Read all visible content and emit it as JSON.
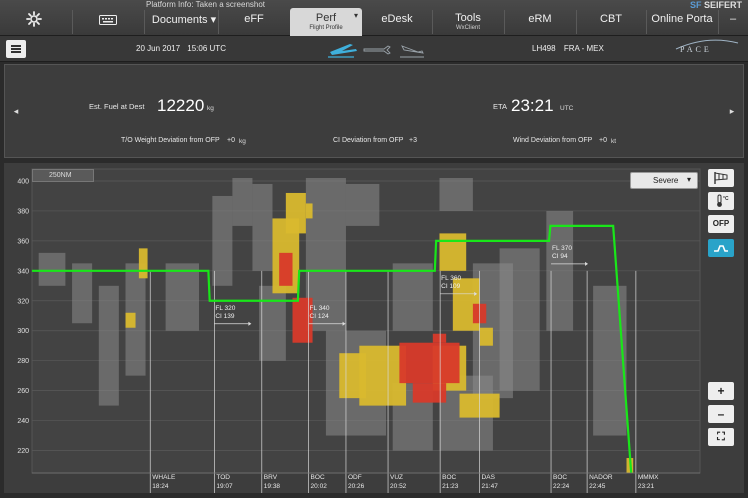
{
  "topnav": {
    "platform_info": "Platform Info: Taken a screenshot",
    "brand_sf": "SF",
    "brand_name": "SEIFERT",
    "tabs": [
      {
        "label": "Documents ▾"
      },
      {
        "label": "eFF"
      },
      {
        "label": "Perf",
        "sub": "Flight Profile"
      },
      {
        "label": "eDesk"
      },
      {
        "label": "Tools",
        "sub": "WxClient"
      },
      {
        "label": "eRM"
      },
      {
        "label": "CBT"
      },
      {
        "label": "Online Porta"
      }
    ],
    "perf_caret": "▾",
    "minimize": "–"
  },
  "header": {
    "date": "20 Jun 2017",
    "time": "15:06 UTC",
    "flight": "LH498",
    "route": "FRA - MEX",
    "logo": "PACE"
  },
  "summary": {
    "left_arrow": "◂",
    "right_arrow": "▸",
    "fuel_label": "Est. Fuel at Dest",
    "fuel_value": "12220",
    "fuel_unit": "kg",
    "eta_label": "ETA",
    "eta_value": "23:21",
    "eta_unit": "UTC",
    "tow_label": "T/O Weight Deviation from OFP",
    "tow_value": "+0",
    "tow_unit": "kg",
    "ci_label": "CI Deviation from OFP",
    "ci_value": "+3",
    "wind_label": "Wind Deviation from OFP",
    "wind_value": "+0",
    "wind_unit": "kt"
  },
  "chart_controls": {
    "range_label": "250NM",
    "severity": "Severe",
    "severity_caret": "▾",
    "buttons": [
      "OFP",
      "+",
      "–",
      "⛶"
    ]
  },
  "colors": {
    "profile": "#19e619",
    "turb_light": "#8a8a8a",
    "turb_moderate": "#d9b92e",
    "turb_severe": "#d83a2a",
    "accent": "#29a3c9"
  },
  "chart_data": {
    "type": "line",
    "y_label": "",
    "ylim": [
      205,
      408
    ],
    "y_ticks": [
      220,
      240,
      260,
      280,
      300,
      320,
      340,
      360,
      380,
      400
    ],
    "xlim": [
      0,
      100
    ],
    "grid": true,
    "profile": {
      "x": [
        0,
        26.4,
        26.6,
        39.8,
        40.0,
        60.3,
        60.5,
        77.4,
        77.6,
        87.0,
        89.7
      ],
      "y": [
        340,
        340,
        320,
        320,
        340,
        340,
        360,
        360,
        370,
        370,
        205
      ]
    },
    "waypoints": [
      {
        "name": "WHALE",
        "time": "18:24",
        "x": 17.7
      },
      {
        "name": "TOD",
        "time": "19:07",
        "x": 27.3
      },
      {
        "name": "BRV",
        "time": "19:38",
        "x": 34.4
      },
      {
        "name": "BOC",
        "time": "20:02",
        "x": 41.4
      },
      {
        "name": "ODF",
        "time": "20:26",
        "x": 47.0
      },
      {
        "name": "VUZ",
        "time": "20:52",
        "x": 53.3
      },
      {
        "name": "BOC",
        "time": "21:23",
        "x": 61.1
      },
      {
        "name": "DAS",
        "time": "21:47",
        "x": 67.0
      },
      {
        "name": "BOC",
        "time": "22:24",
        "x": 77.7
      },
      {
        "name": "NADOR",
        "time": "22:45",
        "x": 83.1
      },
      {
        "name": "MMMX",
        "time": "23:21",
        "x": 90.4
      }
    ],
    "step_annotations": [
      {
        "fl": "FL 320",
        "ci": "CI 139",
        "x": 27.3,
        "y": 318
      },
      {
        "fl": "FL 340",
        "ci": "CI 124",
        "x": 41.4,
        "y": 318
      },
      {
        "fl": "FL 360",
        "ci": "CI 109",
        "x": 61.1,
        "y": 338
      },
      {
        "fl": "FL 370",
        "ci": "CI 94",
        "x": 77.7,
        "y": 358
      }
    ],
    "turbulence": [
      {
        "level": "light",
        "x0": 1,
        "x1": 5,
        "y0": 330,
        "y1": 352
      },
      {
        "level": "light",
        "x0": 6,
        "x1": 9,
        "y0": 305,
        "y1": 345
      },
      {
        "level": "light",
        "x0": 10,
        "x1": 13,
        "y0": 250,
        "y1": 330
      },
      {
        "level": "light",
        "x0": 14,
        "x1": 17,
        "y0": 270,
        "y1": 345
      },
      {
        "level": "light",
        "x0": 20,
        "x1": 25,
        "y0": 300,
        "y1": 345
      },
      {
        "level": "light",
        "x0": 27,
        "x1": 30,
        "y0": 330,
        "y1": 390
      },
      {
        "level": "light",
        "x0": 30,
        "x1": 33,
        "y0": 370,
        "y1": 402
      },
      {
        "level": "light",
        "x0": 33,
        "x1": 36,
        "y0": 340,
        "y1": 398
      },
      {
        "level": "light",
        "x0": 34,
        "x1": 38,
        "y0": 280,
        "y1": 330
      },
      {
        "level": "light",
        "x0": 41,
        "x1": 47,
        "y0": 300,
        "y1": 402
      },
      {
        "level": "light",
        "x0": 44,
        "x1": 53,
        "y0": 230,
        "y1": 300
      },
      {
        "level": "light",
        "x0": 47,
        "x1": 52,
        "y0": 370,
        "y1": 398
      },
      {
        "level": "light",
        "x0": 54,
        "x1": 60,
        "y0": 300,
        "y1": 345
      },
      {
        "level": "light",
        "x0": 54,
        "x1": 60,
        "y0": 220,
        "y1": 265
      },
      {
        "level": "light",
        "x0": 61,
        "x1": 66,
        "y0": 380,
        "y1": 402
      },
      {
        "level": "light",
        "x0": 61,
        "x1": 69,
        "y0": 220,
        "y1": 270
      },
      {
        "level": "light",
        "x0": 66,
        "x1": 72,
        "y0": 255,
        "y1": 345
      },
      {
        "level": "light",
        "x0": 70,
        "x1": 76,
        "y0": 260,
        "y1": 355
      },
      {
        "level": "light",
        "x0": 77,
        "x1": 81,
        "y0": 300,
        "y1": 380
      },
      {
        "level": "light",
        "x0": 84,
        "x1": 89,
        "y0": 230,
        "y1": 330
      },
      {
        "level": "moderate",
        "x0": 16,
        "x1": 17.3,
        "y0": 335,
        "y1": 355
      },
      {
        "level": "moderate",
        "x0": 14,
        "x1": 15.5,
        "y0": 302,
        "y1": 312
      },
      {
        "level": "moderate",
        "x0": 38,
        "x1": 41,
        "y0": 365,
        "y1": 392
      },
      {
        "level": "moderate",
        "x0": 36,
        "x1": 40,
        "y0": 325,
        "y1": 375
      },
      {
        "level": "moderate",
        "x0": 41,
        "x1": 42,
        "y0": 375,
        "y1": 385
      },
      {
        "level": "moderate",
        "x0": 46,
        "x1": 50,
        "y0": 255,
        "y1": 285
      },
      {
        "level": "moderate",
        "x0": 49,
        "x1": 56,
        "y0": 250,
        "y1": 290
      },
      {
        "level": "moderate",
        "x0": 60,
        "x1": 65,
        "y0": 260,
        "y1": 290
      },
      {
        "level": "moderate",
        "x0": 61,
        "x1": 65,
        "y0": 340,
        "y1": 365
      },
      {
        "level": "moderate",
        "x0": 63,
        "x1": 67,
        "y0": 300,
        "y1": 335
      },
      {
        "level": "moderate",
        "x0": 67,
        "x1": 69,
        "y0": 290,
        "y1": 302
      },
      {
        "level": "moderate",
        "x0": 64,
        "x1": 70,
        "y0": 242,
        "y1": 258
      },
      {
        "level": "moderate",
        "x0": 89,
        "x1": 90,
        "y0": 205,
        "y1": 215
      },
      {
        "level": "severe",
        "x0": 37,
        "x1": 39,
        "y0": 330,
        "y1": 352
      },
      {
        "level": "severe",
        "x0": 39,
        "x1": 42,
        "y0": 292,
        "y1": 322
      },
      {
        "level": "severe",
        "x0": 55,
        "x1": 64,
        "y0": 265,
        "y1": 292
      },
      {
        "level": "severe",
        "x0": 57,
        "x1": 62,
        "y0": 252,
        "y1": 265
      },
      {
        "level": "severe",
        "x0": 60,
        "x1": 62,
        "y0": 292,
        "y1": 298
      },
      {
        "level": "severe",
        "x0": 66,
        "x1": 68,
        "y0": 305,
        "y1": 318
      }
    ]
  }
}
